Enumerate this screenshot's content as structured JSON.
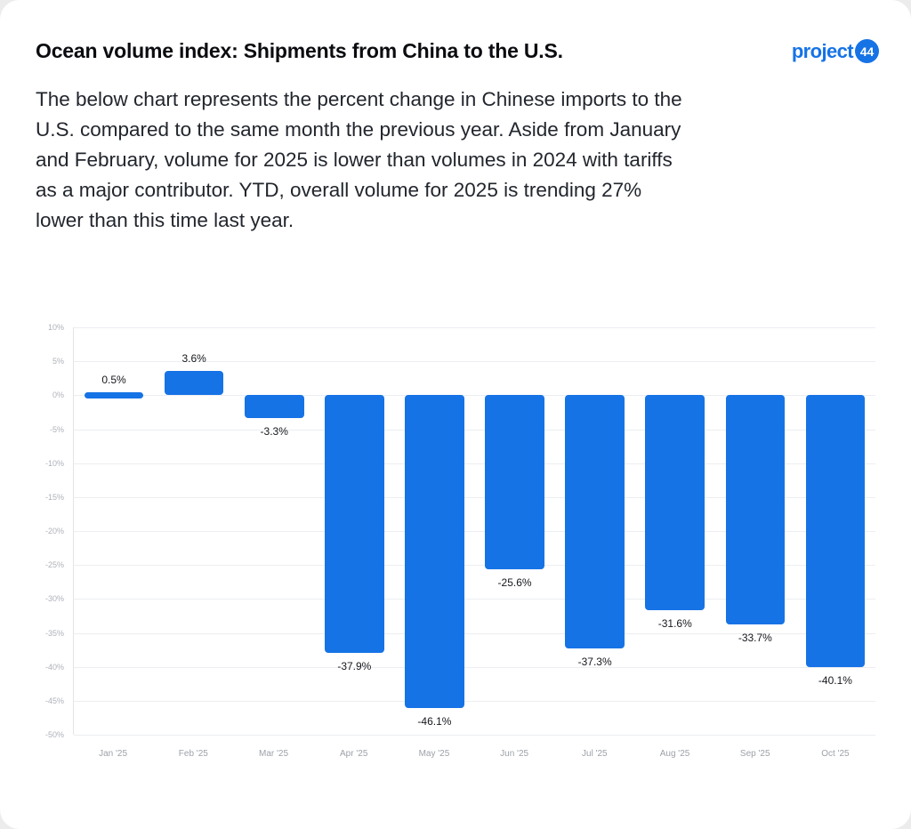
{
  "page": {
    "title": "Ocean volume index: Shipments from China to the U.S.",
    "description": "The below chart represents the percent change in Chinese imports to the U.S. compared to the same month the previous year. Aside from January and February, volume for 2025 is lower than volumes in 2024 with tariffs as a major contributor. YTD, overall volume for 2025 is trending 27% lower than this time last year."
  },
  "brand": {
    "name_text": "project",
    "badge_text": "44",
    "accent": "#1673E6"
  },
  "chart_data": {
    "type": "bar",
    "categories": [
      "Jan '25",
      "Feb '25",
      "Mar '25",
      "Apr '25",
      "May '25",
      "Jun '25",
      "Jul '25",
      "Aug '25",
      "Sep '25",
      "Oct '25"
    ],
    "values": [
      0.5,
      3.6,
      -3.3,
      -37.9,
      -46.1,
      -25.6,
      -37.3,
      -31.6,
      -33.7,
      -40.1
    ],
    "labels": [
      "0.5%",
      "3.6%",
      "-3.3%",
      "-37.9%",
      "-46.1%",
      "-25.6%",
      "-37.3%",
      "-31.6%",
      "-33.7%",
      "-40.1%"
    ],
    "y_ticks": [
      "10%",
      "5%",
      "0%",
      "-5%",
      "-10%",
      "-15%",
      "-20%",
      "-25%",
      "-30%",
      "-35%",
      "-40%",
      "-45%",
      "-50%"
    ],
    "tick_step": 5,
    "ylim": [
      -50,
      10
    ],
    "bar_color": "#1673E6",
    "grid": true,
    "legend": false,
    "title": "",
    "xlabel": "",
    "ylabel": ""
  }
}
